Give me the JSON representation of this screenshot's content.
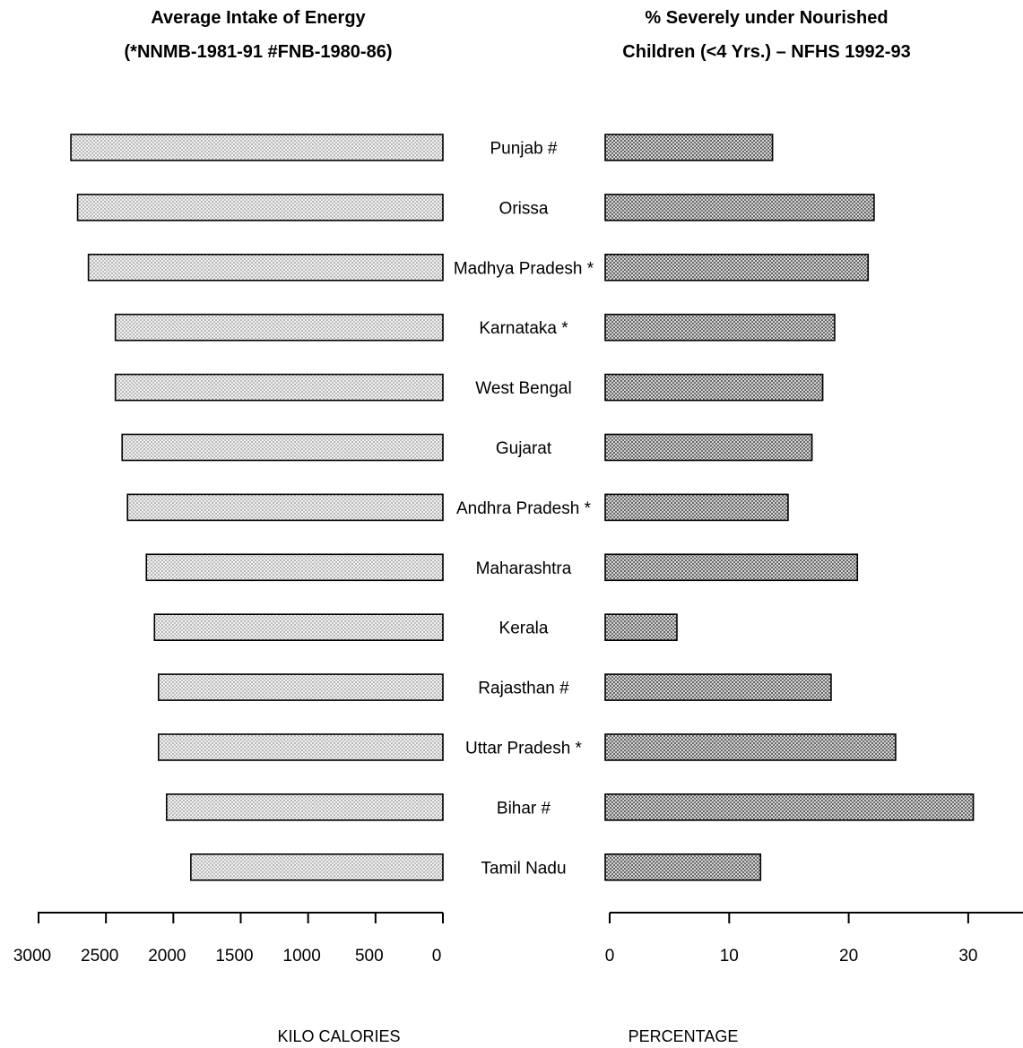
{
  "chart_data": [
    {
      "type": "bar",
      "orientation": "horizontal",
      "direction": "right-to-left",
      "title": "Average Intake of Energy",
      "subtitle": "(*NNMB-1981-91 #FNB-1980-86)",
      "xlabel": "KILO CALORIES",
      "xlim": [
        0,
        3000
      ],
      "ticks": [
        0,
        500,
        1000,
        1500,
        2000,
        2500,
        3000
      ],
      "categories": [
        "Punjab #",
        "Orissa",
        "Madhya Pradesh *",
        "Karnataka *",
        "West Bengal",
        "Gujarat",
        "Andhra Pradesh *",
        "Maharashtra",
        "Kerala",
        "Rajasthan #",
        "Uttar Pradesh *",
        "Bihar #",
        "Tamil Nadu"
      ],
      "values": [
        2760,
        2710,
        2630,
        2430,
        2430,
        2380,
        2340,
        2200,
        2140,
        2110,
        2110,
        2050,
        1870
      ],
      "bar_color": "#dcdcdc"
    },
    {
      "type": "bar",
      "orientation": "horizontal",
      "direction": "left-to-right",
      "title": "% Severely under Nourished",
      "subtitle": "Children (<4 Yrs.) – NFHS 1992-93",
      "xlabel": "PERCENTAGE",
      "xlim": [
        0,
        34
      ],
      "ticks": [
        0,
        10,
        20,
        30
      ],
      "categories": [
        "Punjab #",
        "Orissa",
        "Madhya Pradesh *",
        "Karnataka *",
        "West Bengal",
        "Gujarat",
        "Andhra Pradesh *",
        "Maharashtra",
        "Kerala",
        "Rajasthan #",
        "Uttar Pradesh *",
        "Bihar #",
        "Tamil Nadu"
      ],
      "values": [
        14.0,
        22.5,
        22.0,
        19.2,
        18.2,
        17.3,
        15.3,
        21.1,
        6.0,
        18.9,
        24.3,
        30.8,
        13.0
      ],
      "bar_color": "#b4b4b4"
    }
  ]
}
